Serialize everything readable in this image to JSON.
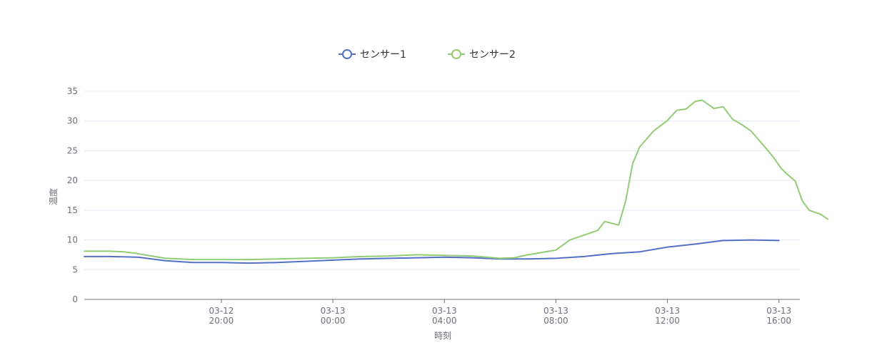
{
  "chart_data": {
    "type": "line",
    "xlabel": "時刻",
    "ylabel": "温度",
    "ylim": [
      0,
      35
    ],
    "yticks": [
      0,
      5,
      10,
      15,
      20,
      25,
      30,
      35
    ],
    "xlim": [
      "03-12 15:05",
      "03-13 16:45"
    ],
    "xticks": [
      {
        "t": "03-12 20:00",
        "date": "03-12",
        "time": "20:00"
      },
      {
        "t": "03-13 00:00",
        "date": "03-13",
        "time": "00:00"
      },
      {
        "t": "03-13 04:00",
        "date": "03-13",
        "time": "04:00"
      },
      {
        "t": "03-13 08:00",
        "date": "03-13",
        "time": "08:00"
      },
      {
        "t": "03-13 12:00",
        "date": "03-13",
        "time": "12:00"
      },
      {
        "t": "03-13 16:00",
        "date": "03-13",
        "time": "16:00"
      }
    ],
    "grid": true,
    "legend_position": "top-center",
    "series": [
      {
        "name": "センサー1",
        "color": "#5470c6",
        "points": [
          [
            "03-12 15:05",
            7.2
          ],
          [
            "03-12 16:00",
            7.2
          ],
          [
            "03-12 17:00",
            7.1
          ],
          [
            "03-12 18:00",
            6.5
          ],
          [
            "03-12 19:00",
            6.2
          ],
          [
            "03-12 20:00",
            6.2
          ],
          [
            "03-12 21:00",
            6.1
          ],
          [
            "03-12 22:00",
            6.2
          ],
          [
            "03-12 23:00",
            6.4
          ],
          [
            "03-13 00:00",
            6.6
          ],
          [
            "03-13 01:00",
            6.8
          ],
          [
            "03-13 02:00",
            6.9
          ],
          [
            "03-13 03:00",
            7.0
          ],
          [
            "03-13 04:00",
            7.1
          ],
          [
            "03-13 05:00",
            7.0
          ],
          [
            "03-13 06:00",
            6.8
          ],
          [
            "03-13 07:00",
            6.8
          ],
          [
            "03-13 08:00",
            6.9
          ],
          [
            "03-13 09:00",
            7.2
          ],
          [
            "03-13 10:00",
            7.7
          ],
          [
            "03-13 11:00",
            8.0
          ],
          [
            "03-13 12:00",
            8.8
          ],
          [
            "03-13 13:00",
            9.3
          ],
          [
            "03-13 14:00",
            9.9
          ],
          [
            "03-13 15:00",
            10.0
          ],
          [
            "03-13 16:00",
            9.9
          ]
        ]
      },
      {
        "name": "センサー2",
        "color": "#91cc75",
        "points": [
          [
            "03-12 15:05",
            8.1
          ],
          [
            "03-12 16:00",
            8.1
          ],
          [
            "03-12 16:30",
            8.0
          ],
          [
            "03-12 17:00",
            7.7
          ],
          [
            "03-12 17:30",
            7.3
          ],
          [
            "03-12 18:00",
            6.9
          ],
          [
            "03-12 19:00",
            6.7
          ],
          [
            "03-12 20:00",
            6.7
          ],
          [
            "03-12 21:00",
            6.7
          ],
          [
            "03-12 22:00",
            6.8
          ],
          [
            "03-12 23:00",
            6.9
          ],
          [
            "03-13 00:00",
            7.0
          ],
          [
            "03-13 01:00",
            7.2
          ],
          [
            "03-13 02:00",
            7.3
          ],
          [
            "03-13 03:00",
            7.5
          ],
          [
            "03-13 04:00",
            7.4
          ],
          [
            "03-13 05:00",
            7.3
          ],
          [
            "03-13 06:00",
            6.9
          ],
          [
            "03-13 06:30",
            7.0
          ],
          [
            "03-13 07:00",
            7.5
          ],
          [
            "03-13 07:30",
            7.9
          ],
          [
            "03-13 08:00",
            8.3
          ],
          [
            "03-13 08:30",
            10.0
          ],
          [
            "03-13 09:00",
            10.8
          ],
          [
            "03-13 09:30",
            11.6
          ],
          [
            "03-13 09:45",
            13.1
          ],
          [
            "03-13 10:15",
            12.5
          ],
          [
            "03-13 10:30",
            16.5
          ],
          [
            "03-13 10:45",
            22.8
          ],
          [
            "03-13 11:00",
            25.6
          ],
          [
            "03-13 11:30",
            28.3
          ],
          [
            "03-13 12:00",
            30.1
          ],
          [
            "03-13 12:20",
            31.8
          ],
          [
            "03-13 12:40",
            32.0
          ],
          [
            "03-13 13:00",
            33.3
          ],
          [
            "03-13 13:15",
            33.5
          ],
          [
            "03-13 13:40",
            32.1
          ],
          [
            "03-13 14:00",
            32.4
          ],
          [
            "03-13 14:20",
            30.3
          ],
          [
            "03-13 14:40",
            29.4
          ],
          [
            "03-13 15:00",
            28.3
          ],
          [
            "03-13 15:30",
            25.6
          ],
          [
            "03-13 15:50",
            23.7
          ],
          [
            "03-13 16:05",
            22.0
          ],
          [
            "03-13 16:20",
            20.9
          ],
          [
            "03-13 16:35",
            19.9
          ],
          [
            "03-13 16:50",
            16.6
          ],
          [
            "03-13 17:05",
            15.0
          ],
          [
            "03-13 17:30",
            14.3
          ],
          [
            "03-13 17:45",
            13.5
          ]
        ]
      }
    ]
  }
}
